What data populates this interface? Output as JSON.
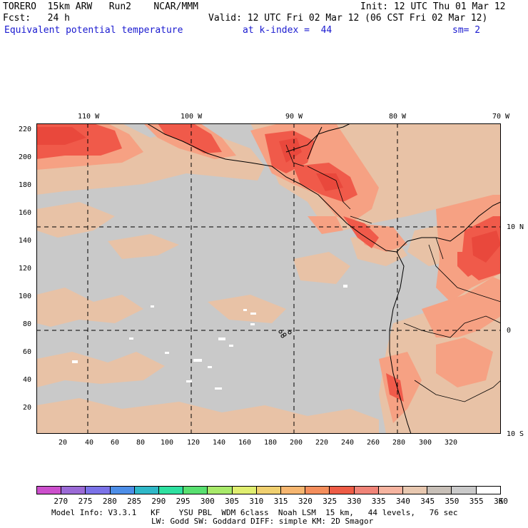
{
  "header": {
    "line1_left": "TORERO  15km ARW   Run2    NCAR/MMM",
    "line1_right": "Init: 12 UTC Thu 01 Mar 12",
    "line2_left": "Fcst:   24 h",
    "line2_right": "Valid: 12 UTC Fri 02 Mar 12 (06 CST Fri 02 Mar 12)",
    "line3_field": "Equivalent potential temperature",
    "line3_level": "at k-index =  44",
    "line3_sm": "sm= 2"
  },
  "map": {
    "lon_labels": [
      "110 W",
      "100 W",
      "90 W",
      "80 W",
      "70 W"
    ],
    "lat_labels": [
      "10 N",
      "0",
      "10 S"
    ],
    "y_ticks": [
      "220",
      "200",
      "180",
      "160",
      "140",
      "120",
      "100",
      "80",
      "60",
      "40",
      "20"
    ],
    "x_ticks": [
      "20",
      "40",
      "60",
      "80",
      "100",
      "120",
      "140",
      "160",
      "180",
      "200",
      "220",
      "240",
      "260",
      "280",
      "300",
      "320"
    ],
    "colors": {
      "background_field": "#c9c9c9",
      "tan": "#e8c2a6",
      "salmon": "#f6a183",
      "red": "#f05a4a",
      "deep_red": "#e9483c",
      "white_spots": "#ffffff"
    }
  },
  "colorbar": {
    "labels": [
      "270",
      "275",
      "280",
      "285",
      "290",
      "295",
      "300",
      "305",
      "310",
      "315",
      "320",
      "325",
      "330",
      "335",
      "340",
      "345",
      "350",
      "355",
      "360",
      "K"
    ],
    "colors": [
      "#cc4fcc",
      "#9b6ad6",
      "#7b72e8",
      "#4d8ee8",
      "#2fb8c8",
      "#2ee0a0",
      "#58e070",
      "#a8ea6a",
      "#e0ee70",
      "#f0d070",
      "#f6b670",
      "#f48e5c",
      "#ee5c46",
      "#f08478",
      "#f6b4a0",
      "#e8c8b0",
      "#c8c0b8",
      "#cacaca",
      "#ffffff"
    ]
  },
  "footer": {
    "line1": "Model Info: V3.3.1   KF    YSU PBL  WDM 6class  Noah LSM  15 km,   44 levels,   76 sec",
    "line2": "LW: Godd SW: Goddard DIFF: simple KM: 2D Smagor"
  }
}
